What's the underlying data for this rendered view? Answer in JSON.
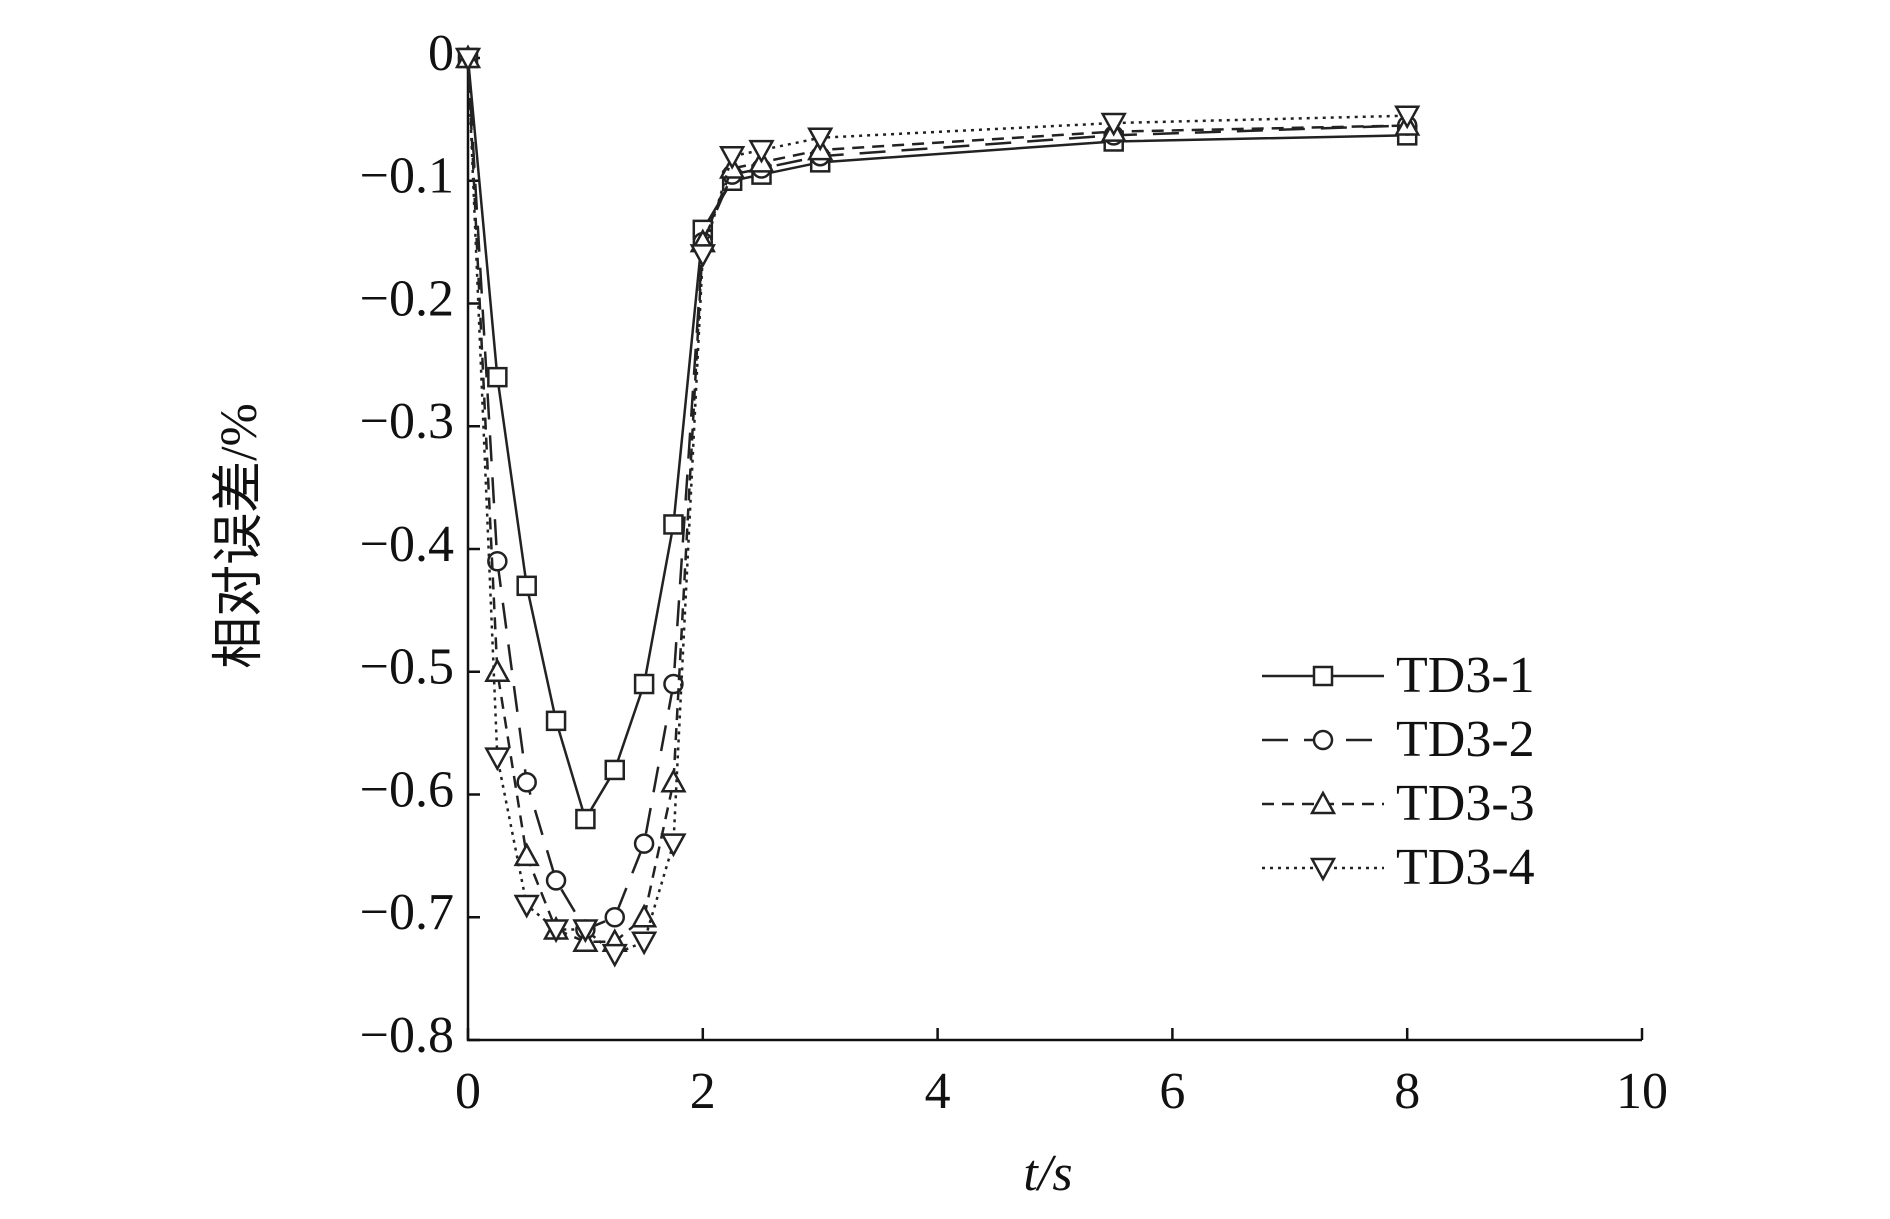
{
  "chart_data": {
    "type": "line",
    "xlabel": "t/s",
    "ylabel": "相对误差/%",
    "x": [
      0,
      0.25,
      0.5,
      0.75,
      1,
      1.25,
      1.5,
      1.75,
      2,
      2.25,
      2.5,
      3,
      5.5,
      8
    ],
    "series": [
      {
        "name": "TD3-1",
        "color": "#222",
        "dash": "solid",
        "marker": "square",
        "values": [
          0,
          -0.26,
          -0.43,
          -0.54,
          -0.62,
          -0.58,
          -0.51,
          -0.38,
          -0.14,
          -0.1,
          -0.095,
          -0.085,
          -0.068,
          -0.063
        ]
      },
      {
        "name": "TD3-2",
        "color": "#222",
        "dash": "long",
        "marker": "circle",
        "values": [
          0,
          -0.41,
          -0.59,
          -0.67,
          -0.71,
          -0.7,
          -0.64,
          -0.51,
          -0.15,
          -0.095,
          -0.09,
          -0.08,
          -0.063,
          -0.055
        ]
      },
      {
        "name": "TD3-3",
        "color": "#222",
        "dash": "short",
        "marker": "triangle-up",
        "values": [
          0,
          -0.5,
          -0.65,
          -0.71,
          -0.72,
          -0.72,
          -0.7,
          -0.59,
          -0.15,
          -0.09,
          -0.085,
          -0.075,
          -0.06,
          -0.055
        ]
      },
      {
        "name": "TD3-4",
        "color": "#222",
        "dash": "dotted",
        "marker": "triangle-down",
        "values": [
          0,
          -0.57,
          -0.69,
          -0.71,
          -0.71,
          -0.73,
          -0.72,
          -0.64,
          -0.16,
          -0.08,
          -0.075,
          -0.065,
          -0.053,
          -0.047
        ]
      }
    ],
    "xlim": [
      0,
      10
    ],
    "xticks": [
      0,
      2,
      4,
      6,
      8,
      10
    ],
    "ylim": [
      -0.8,
      0
    ],
    "yticks": [
      0,
      {
        "value": -0.1,
        "label": "−0.1"
      },
      {
        "value": -0.2,
        "label": "−0.2"
      },
      {
        "value": -0.3,
        "label": "−0.3"
      },
      {
        "value": -0.4,
        "label": "−0.4"
      },
      {
        "value": -0.5,
        "label": "−0.5"
      },
      {
        "value": -0.6,
        "label": "−0.6"
      },
      {
        "value": -0.7,
        "label": "−0.7"
      },
      {
        "value": -0.8,
        "label": "−0.8"
      }
    ],
    "legend": "lower-right",
    "grid": false
  }
}
